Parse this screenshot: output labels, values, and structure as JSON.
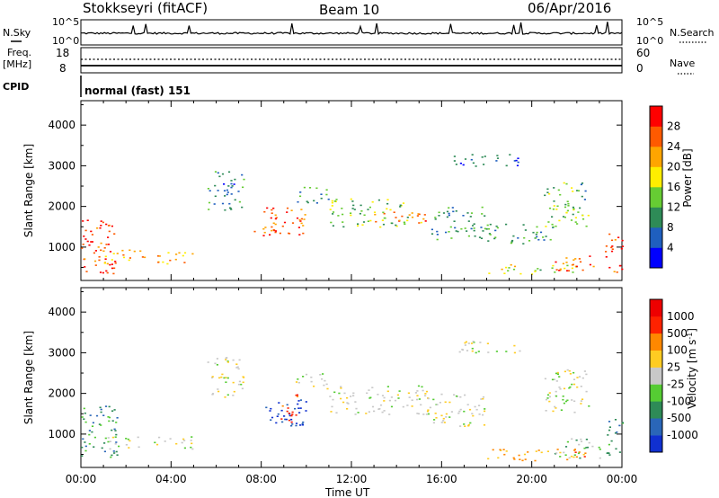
{
  "header": {
    "station": "Stokkseyri (fitACF)",
    "beam": "Beam 10",
    "date": "06/Apr/2016"
  },
  "ancillary": {
    "nsky_label": "N.Sky",
    "nsky_ticks": [
      "10^5",
      "10^0"
    ],
    "nsearch_label": "N.Search",
    "nsearch_ticks": [
      "10^5",
      "10^0"
    ],
    "freq_label": "Freq.",
    "freq_unit": "[MHz]",
    "freq_ticks": [
      "18",
      "8"
    ],
    "nave_label": "Nave",
    "nave_ticks": [
      "60",
      "0"
    ],
    "cpid_label": "CPID",
    "cpid_value": "normal (fast) 151"
  },
  "chart_data": [
    {
      "type": "heatmap",
      "panel": "power",
      "ylabel": "Slant Range [km]",
      "xlabel": "",
      "x_ticks": [
        "00:00",
        "04:00",
        "08:00",
        "12:00",
        "16:00",
        "20:00",
        "00:00"
      ],
      "xlim_hours": [
        0,
        24
      ],
      "y_ticks": [
        1000,
        2000,
        3000,
        4000
      ],
      "ylim": [
        180,
        4600
      ],
      "colorbar": {
        "label": "Power [dB]",
        "ticks": [
          "4",
          "8",
          "12",
          "16",
          "20",
          "24",
          "28"
        ],
        "range": [
          0,
          30
        ],
        "colors": [
          "#0000ff",
          "#1f5fbf",
          "#2e8b57",
          "#66cc33",
          "#ffee00",
          "#ffa500",
          "#ff5a00",
          "#ff0000"
        ]
      },
      "regions": [
        {
          "t": [
            0.0,
            1.6
          ],
          "r": [
            350,
            1700
          ],
          "v": 26
        },
        {
          "t": [
            1.0,
            3.0
          ],
          "r": [
            600,
            950
          ],
          "v": 22
        },
        {
          "t": [
            3.0,
            5.0
          ],
          "r": [
            600,
            900
          ],
          "v": 20
        },
        {
          "t": [
            5.6,
            7.2
          ],
          "r": [
            1900,
            2900
          ],
          "v": 8
        },
        {
          "t": [
            7.5,
            10.0
          ],
          "r": [
            1300,
            2000
          ],
          "v": 24
        },
        {
          "t": [
            9.5,
            11.0
          ],
          "r": [
            2100,
            2500
          ],
          "v": 10
        },
        {
          "t": [
            11.0,
            14.5
          ],
          "r": [
            1500,
            2200
          ],
          "v": 14
        },
        {
          "t": [
            13.0,
            15.5
          ],
          "r": [
            1600,
            1900
          ],
          "v": 22
        },
        {
          "t": [
            15.5,
            18.0
          ],
          "r": [
            1200,
            2000
          ],
          "v": 10
        },
        {
          "t": [
            16.5,
            19.5
          ],
          "r": [
            3000,
            3300
          ],
          "v": 6
        },
        {
          "t": [
            18.0,
            21.0
          ],
          "r": [
            1100,
            1600
          ],
          "v": 10
        },
        {
          "t": [
            18.0,
            22.0
          ],
          "r": [
            350,
            600
          ],
          "v": 16
        },
        {
          "t": [
            20.5,
            22.5
          ],
          "r": [
            1500,
            2600
          ],
          "v": 12
        },
        {
          "t": [
            21.0,
            23.0
          ],
          "r": [
            400,
            800
          ],
          "v": 24
        },
        {
          "t": [
            23.2,
            24.0
          ],
          "r": [
            400,
            1400
          ],
          "v": 26
        }
      ]
    },
    {
      "type": "heatmap",
      "panel": "velocity",
      "ylabel": "Slant Range [km]",
      "xlabel": "Time UT",
      "x_ticks": [
        "00:00",
        "04:00",
        "08:00",
        "12:00",
        "16:00",
        "20:00",
        "00:00"
      ],
      "xlim_hours": [
        0,
        24
      ],
      "y_ticks": [
        1000,
        2000,
        3000,
        4000
      ],
      "ylim": [
        180,
        4600
      ],
      "colorbar": {
        "label": "Velocity [m s",
        "label_sup": "-1",
        "label_close": "]",
        "ticks": [
          "1000",
          "500",
          "100",
          "25",
          "-25",
          "-100",
          "-500",
          "-1000"
        ],
        "colors": [
          "#1030d0",
          "#2a66b8",
          "#2e8b57",
          "#55cc33",
          "#c8c8c8",
          "#ffcc22",
          "#ff8800",
          "#ff2200",
          "#ee0000"
        ]
      },
      "regions": [
        {
          "t": [
            0.0,
            1.6
          ],
          "r": [
            400,
            1700
          ],
          "v": 2
        },
        {
          "t": [
            1.0,
            5.0
          ],
          "r": [
            650,
            950
          ],
          "v": 4
        },
        {
          "t": [
            5.6,
            7.2
          ],
          "r": [
            1900,
            2900
          ],
          "v": 4
        },
        {
          "t": [
            8.0,
            10.0
          ],
          "r": [
            1200,
            1900
          ],
          "v": 0
        },
        {
          "t": [
            8.8,
            9.6
          ],
          "r": [
            1300,
            2000
          ],
          "v": 7
        },
        {
          "t": [
            9.5,
            11.0
          ],
          "r": [
            2100,
            2500
          ],
          "v": 4
        },
        {
          "t": [
            11.0,
            15.5
          ],
          "r": [
            1500,
            2200
          ],
          "v": 4
        },
        {
          "t": [
            15.5,
            18.0
          ],
          "r": [
            1200,
            2000
          ],
          "v": 4
        },
        {
          "t": [
            16.5,
            19.5
          ],
          "r": [
            3000,
            3300
          ],
          "v": 4
        },
        {
          "t": [
            18.0,
            22.5
          ],
          "r": [
            350,
            650
          ],
          "v": 6
        },
        {
          "t": [
            20.5,
            22.5
          ],
          "r": [
            1500,
            2600
          ],
          "v": 4
        },
        {
          "t": [
            21.0,
            23.0
          ],
          "r": [
            400,
            900
          ],
          "v": 3
        },
        {
          "t": [
            23.2,
            24.0
          ],
          "r": [
            500,
            1400
          ],
          "v": 2
        }
      ]
    }
  ]
}
